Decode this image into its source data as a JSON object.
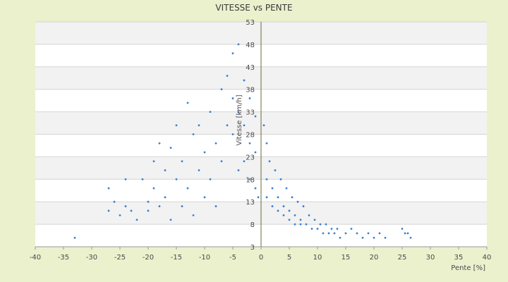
{
  "chart_data": {
    "type": "scatter",
    "title": "VITESSE vs PENTE",
    "xlabel": "Pente [%]",
    "ylabel": "Vitesse [km/h]",
    "xlim": [
      -40,
      40
    ],
    "ylim": [
      3,
      53
    ],
    "x_ticks": [
      -40,
      -35,
      -30,
      -25,
      -20,
      -15,
      -10,
      -5,
      0,
      5,
      10,
      15,
      20,
      25,
      30,
      35,
      40
    ],
    "y_ticks": [
      3,
      8,
      13,
      18,
      23,
      28,
      33,
      38,
      43,
      48,
      53
    ],
    "grid": true,
    "legend": "none",
    "colors": {
      "page_background": "#ebf1cd",
      "plot_background": "#ffffff",
      "band_alternate": "#f2f2f2",
      "marker": "#3b7fd0",
      "y_axis_line": "#6b6b3a"
    },
    "series": [
      {
        "points": [
          [
            -33,
            5
          ],
          [
            -27,
            16
          ],
          [
            -27,
            11
          ],
          [
            -26,
            13
          ],
          [
            -25,
            10
          ],
          [
            -24,
            18
          ],
          [
            -24,
            12
          ],
          [
            -23,
            11
          ],
          [
            -22,
            9
          ],
          [
            -21,
            18
          ],
          [
            -20,
            13
          ],
          [
            -20,
            11
          ],
          [
            -19,
            22
          ],
          [
            -19,
            16
          ],
          [
            -18,
            26
          ],
          [
            -18,
            12
          ],
          [
            -17,
            20
          ],
          [
            -17,
            14
          ],
          [
            -16,
            25
          ],
          [
            -16,
            9
          ],
          [
            -15,
            30
          ],
          [
            -15,
            18
          ],
          [
            -14,
            22
          ],
          [
            -14,
            12
          ],
          [
            -13,
            35
          ],
          [
            -13,
            16
          ],
          [
            -12,
            28
          ],
          [
            -12,
            10
          ],
          [
            -11,
            30
          ],
          [
            -11,
            20
          ],
          [
            -10,
            24
          ],
          [
            -10,
            14
          ],
          [
            -9,
            33
          ],
          [
            -9,
            18
          ],
          [
            -8,
            26
          ],
          [
            -8,
            12
          ],
          [
            -7,
            38
          ],
          [
            -7,
            22
          ],
          [
            -6,
            41
          ],
          [
            -6,
            30
          ],
          [
            -5,
            46
          ],
          [
            -5,
            36
          ],
          [
            -5,
            28
          ],
          [
            -4,
            48
          ],
          [
            -4,
            33
          ],
          [
            -4,
            20
          ],
          [
            -3,
            40
          ],
          [
            -3,
            30
          ],
          [
            -3,
            22
          ],
          [
            -2,
            36
          ],
          [
            -2,
            26
          ],
          [
            -2,
            18
          ],
          [
            -1,
            32
          ],
          [
            -1,
            24
          ],
          [
            -1,
            16
          ],
          [
            -0.5,
            14
          ],
          [
            0.5,
            30
          ],
          [
            1,
            26
          ],
          [
            1,
            18
          ],
          [
            1,
            14
          ],
          [
            1.5,
            22
          ],
          [
            2,
            16
          ],
          [
            2,
            12
          ],
          [
            2.5,
            20
          ],
          [
            3,
            14
          ],
          [
            3,
            11
          ],
          [
            3.5,
            18
          ],
          [
            4,
            12
          ],
          [
            4,
            10
          ],
          [
            4.5,
            16
          ],
          [
            5,
            11
          ],
          [
            5,
            9
          ],
          [
            5.5,
            14
          ],
          [
            6,
            10
          ],
          [
            6,
            8
          ],
          [
            6.5,
            13
          ],
          [
            7,
            9
          ],
          [
            7,
            8
          ],
          [
            7.5,
            12
          ],
          [
            8,
            8
          ],
          [
            8.5,
            10
          ],
          [
            9,
            7
          ],
          [
            9.5,
            9
          ],
          [
            10,
            7
          ],
          [
            10.5,
            8
          ],
          [
            11,
            6
          ],
          [
            11.5,
            8
          ],
          [
            12,
            6
          ],
          [
            12.5,
            7
          ],
          [
            13,
            6
          ],
          [
            13.5,
            7
          ],
          [
            14,
            5
          ],
          [
            15,
            6
          ],
          [
            16,
            7
          ],
          [
            17,
            6
          ],
          [
            18,
            5
          ],
          [
            19,
            6
          ],
          [
            20,
            5
          ],
          [
            21,
            6
          ],
          [
            22,
            5
          ],
          [
            25,
            7
          ],
          [
            25.5,
            6
          ],
          [
            26,
            6
          ],
          [
            26.5,
            5
          ]
        ]
      }
    ]
  }
}
